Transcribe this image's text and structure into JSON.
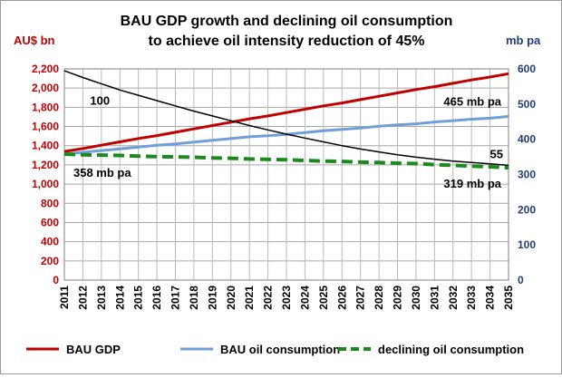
{
  "chart_data": {
    "type": "line",
    "title": [
      "BAU GDP growth and declining oil consumption",
      "to achieve oil intensity reduction of 45%"
    ],
    "y_left_label": "AU$ bn",
    "y_right_label": "mb pa",
    "x": [
      "2011",
      "2012",
      "2013",
      "2014",
      "2015",
      "2016",
      "2017",
      "2018",
      "2019",
      "2020",
      "2021",
      "2022",
      "2023",
      "2024",
      "2025",
      "2026",
      "2027",
      "2028",
      "2029",
      "2030",
      "2031",
      "2032",
      "2033",
      "2034",
      "2035"
    ],
    "y_left": {
      "min": 0,
      "max": 2200,
      "ticks": [
        "0",
        "200",
        "400",
        "600",
        "800",
        "1,000",
        "1,200",
        "1,400",
        "1,600",
        "1,800",
        "2,000",
        "2,200"
      ],
      "tick_values": [
        0,
        200,
        400,
        600,
        800,
        1000,
        1200,
        1400,
        1600,
        1800,
        2000,
        2200
      ]
    },
    "y_right": {
      "min": 0,
      "max": 600,
      "ticks": [
        "0",
        "100",
        "200",
        "300",
        "400",
        "500",
        "600"
      ],
      "tick_values": [
        0,
        100,
        200,
        300,
        400,
        500,
        600
      ]
    },
    "grid": true,
    "legend_position": "bottom",
    "series": [
      {
        "name": "BAU GDP",
        "axis": "left",
        "color": "#c00000",
        "style": "solid",
        "values": [
          1340,
          1370,
          1405,
          1440,
          1475,
          1505,
          1540,
          1575,
          1610,
          1645,
          1680,
          1710,
          1745,
          1780,
          1815,
          1845,
          1880,
          1915,
          1950,
          1985,
          2015,
          2050,
          2085,
          2115,
          2150
        ]
      },
      {
        "name": "BAU oil consumption",
        "axis": "right",
        "color": "#6f9fd8",
        "style": "solid",
        "values": [
          358,
          363,
          368,
          373,
          378,
          383,
          387,
          392,
          397,
          402,
          407,
          410,
          414,
          419,
          424,
          428,
          432,
          437,
          441,
          444,
          449,
          453,
          457,
          460,
          465
        ]
      },
      {
        "name": "declining oil consumption",
        "axis": "right",
        "color": "#1a8a1a",
        "style": "dashed",
        "values": [
          358,
          356,
          355,
          354,
          352,
          351,
          350,
          349,
          347,
          346,
          344,
          343,
          342,
          340,
          338,
          337,
          335,
          334,
          332,
          331,
          328,
          326,
          324,
          322,
          319
        ]
      },
      {
        "name": "",
        "axis": "left",
        "color": "#000000",
        "style": "solid",
        "values": [
          2180,
          2110,
          2045,
          1980,
          1925,
          1870,
          1815,
          1760,
          1710,
          1660,
          1610,
          1565,
          1520,
          1480,
          1440,
          1400,
          1365,
          1335,
          1305,
          1280,
          1260,
          1240,
          1225,
          1210,
          1195
        ]
      }
    ],
    "annotations": [
      {
        "text": "100",
        "series": 3,
        "index": 1
      },
      {
        "text": "55",
        "series": 3,
        "index": 24
      },
      {
        "text": "358 mb pa",
        "series": 2,
        "index": 0
      },
      {
        "text": "319 mb pa",
        "series": 2,
        "index": 24
      },
      {
        "text": "465 mb pa",
        "series": 1,
        "index": 24
      }
    ]
  }
}
